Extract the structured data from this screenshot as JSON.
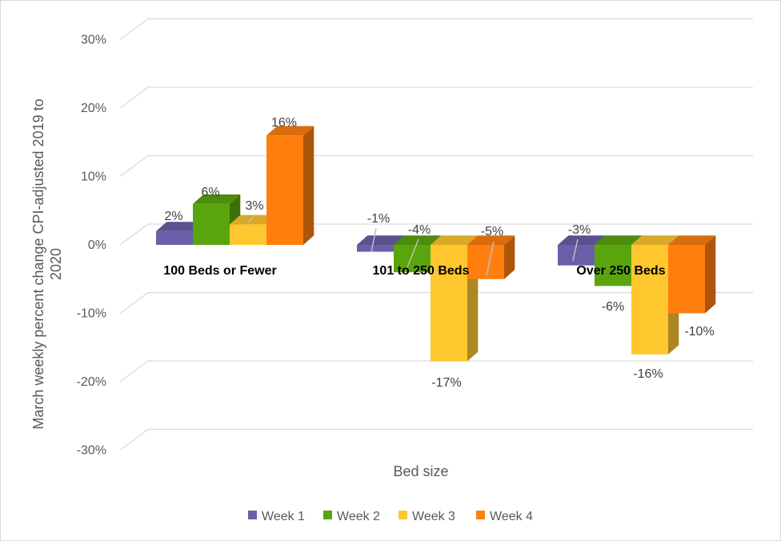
{
  "chart_data": {
    "type": "bar",
    "xlabel": "Bed size",
    "ylabel": "March weekly percent change CPI-adjusted 2019 to 2020",
    "ylim": [
      -30,
      30
    ],
    "yticks": [
      "30%",
      "20%",
      "10%",
      "0%",
      "-10%",
      "-20%",
      "-30%"
    ],
    "ytick_values": [
      30,
      20,
      10,
      0,
      -10,
      -20,
      -30
    ],
    "categories": [
      "100 Beds or Fewer",
      "101 to 250 Beds",
      "Over 250 Beds"
    ],
    "series": [
      {
        "name": "Week 1",
        "values": [
          2,
          -1,
          -3
        ],
        "labels": [
          "2%",
          "-1%",
          "-3%"
        ],
        "color": "#6a5fa8"
      },
      {
        "name": "Week 2",
        "values": [
          6,
          -4,
          -6
        ],
        "labels": [
          "6%",
          "-4%",
          "-6%"
        ],
        "color": "#5aa50e"
      },
      {
        "name": "Week 3",
        "values": [
          3,
          -17,
          -16
        ],
        "labels": [
          "3%",
          "-17%",
          "-16%"
        ],
        "color": "#ffc72e"
      },
      {
        "name": "Week 4",
        "values": [
          16,
          -5,
          -10
        ],
        "labels": [
          "16%",
          "-5%",
          "-10%"
        ],
        "color": "#ff7f0e"
      }
    ],
    "legend_position": "bottom",
    "grid": true,
    "style": "3d-clustered-column"
  }
}
